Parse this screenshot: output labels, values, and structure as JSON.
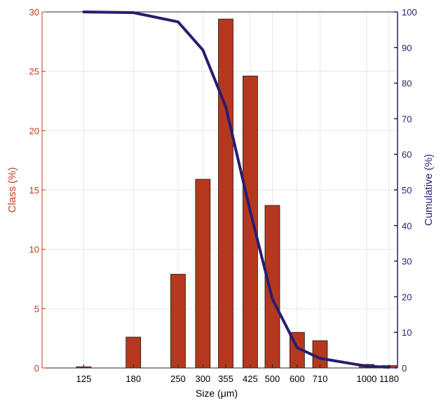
{
  "colors": {
    "bar_fill": "#B5381E",
    "bar_stroke": "#1a1a1a",
    "left_axis": "#C0391B",
    "right_axis": "#2B1C6E",
    "line": "#2B1C6E",
    "x_axis": "#000000",
    "grid": "#E6E6E6"
  },
  "chart_data": {
    "type": "bar",
    "x_scale": "log",
    "xlabel": "Size (μm)",
    "ylabel": "Class (%)",
    "y2label": "Cumulative (%)",
    "ylim": [
      0,
      30
    ],
    "y2lim": [
      0,
      100
    ],
    "yticks": [
      0,
      5,
      10,
      15,
      20,
      25,
      30
    ],
    "y2ticks": [
      0,
      10,
      20,
      30,
      40,
      50,
      60,
      70,
      80,
      90,
      100
    ],
    "grid": true,
    "categories": [
      "125",
      "180",
      "250",
      "300",
      "355",
      "425",
      "500",
      "600",
      "710",
      "1000",
      "1180"
    ],
    "x": [
      125,
      180,
      250,
      300,
      355,
      425,
      500,
      600,
      710,
      1000,
      1180
    ],
    "series": [
      {
        "type": "bar",
        "axis": "left",
        "values": [
          0.1,
          2.6,
          7.9,
          15.9,
          29.4,
          24.6,
          13.7,
          3.0,
          2.3,
          0.3,
          0.2
        ]
      },
      {
        "type": "line",
        "axis": "right",
        "values": [
          100,
          99.8,
          97.2,
          89.3,
          73.4,
          44.0,
          19.4,
          5.7,
          2.7,
          0.5,
          0.2
        ]
      }
    ]
  }
}
